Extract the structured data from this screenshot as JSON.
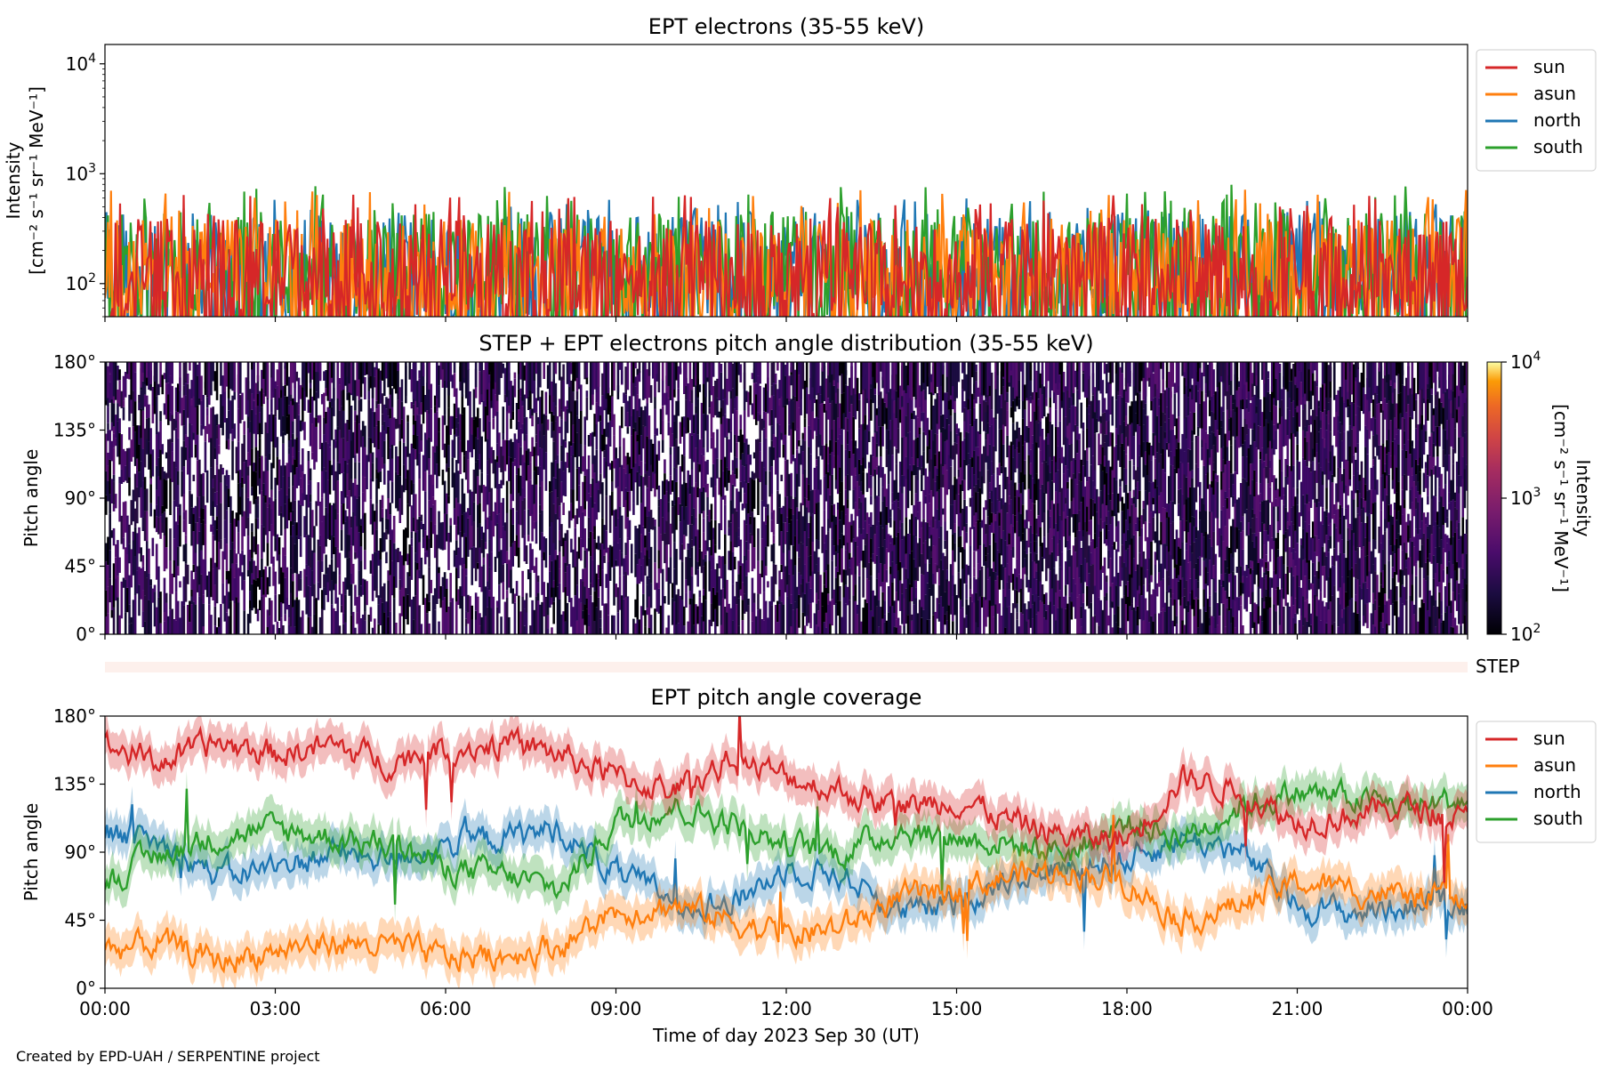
{
  "colors": {
    "sun": "#d62728",
    "asun": "#ff7f0e",
    "north": "#1f77b4",
    "south": "#2ca02c",
    "step_bar": "#fdf0ec"
  },
  "xaxis": {
    "ticks": [
      "00:00",
      "03:00",
      "06:00",
      "09:00",
      "12:00",
      "15:00",
      "18:00",
      "21:00",
      "00:00"
    ],
    "label": "Time of day 2023 Sep 30 (UT)"
  },
  "footer": "Created by EPD-UAH / SERPENTINE project",
  "chart_data": [
    {
      "type": "line",
      "title": "EPT electrons (35-55 keV)",
      "ylabel_line1": "Intensity",
      "ylabel_line2": "[cm⁻² s⁻¹ sr⁻¹ MeV⁻¹]",
      "yscale": "log",
      "ylim": [
        50,
        15000
      ],
      "yticks": [
        {
          "base": "10",
          "exp": "2",
          "value": 100
        },
        {
          "base": "10",
          "exp": "3",
          "value": 1000
        },
        {
          "base": "10",
          "exp": "4",
          "value": 10000
        }
      ],
      "xlim_hours": [
        0,
        24
      ],
      "legend": "outside-right",
      "series": [
        {
          "name": "sun",
          "typical": 130,
          "spread": 0.35,
          "max": 650
        },
        {
          "name": "asun",
          "typical": 130,
          "spread": 0.35,
          "max": 720
        },
        {
          "name": "north",
          "typical": 150,
          "spread": 0.3,
          "max": 600
        },
        {
          "name": "south",
          "typical": 150,
          "spread": 0.3,
          "max": 800
        }
      ]
    },
    {
      "type": "heatmap",
      "title": "STEP + EPT electrons pitch angle distribution (35-55 keV)",
      "ylabel": "Pitch angle",
      "ylim": [
        0,
        180
      ],
      "yticks": [
        "0°",
        "45°",
        "90°",
        "135°",
        "180°"
      ],
      "colorbar": {
        "label_line1": "Intensity",
        "label_line2": "[cm⁻² s⁻¹ sr⁻¹ MeV⁻¹]",
        "scale": "log",
        "range": [
          100,
          10000
        ],
        "ticks": [
          {
            "base": "10",
            "exp": "2"
          },
          {
            "base": "10",
            "exp": "3"
          },
          {
            "base": "10",
            "exp": "4"
          }
        ],
        "colormap": "inferno"
      }
    },
    {
      "type": "bar",
      "label": "STEP"
    },
    {
      "type": "line",
      "title": "EPT pitch angle coverage",
      "ylabel": "Pitch angle",
      "ylim": [
        0,
        180
      ],
      "yticks": [
        "0°",
        "45°",
        "90°",
        "135°",
        "180°"
      ],
      "legend": "outside-right",
      "band_half_width_deg": 12,
      "series": [
        {
          "name": "sun",
          "x_hours": [
            0,
            1,
            2,
            3,
            4,
            5,
            6,
            7,
            8,
            9,
            10,
            11,
            12,
            13,
            14,
            15,
            16,
            17,
            18,
            19,
            20,
            21,
            22,
            23,
            24
          ],
          "y": [
            160,
            150,
            162,
            155,
            160,
            150,
            158,
            162,
            155,
            140,
            130,
            150,
            140,
            130,
            120,
            125,
            110,
            100,
            98,
            140,
            130,
            110,
            115,
            120,
            110
          ]
        },
        {
          "name": "asun",
          "x_hours": [
            0,
            1,
            2,
            3,
            4,
            5,
            6,
            7,
            8,
            9,
            10,
            11,
            12,
            13,
            14,
            15,
            16,
            17,
            18,
            19,
            20,
            21,
            22,
            23,
            24
          ],
          "y": [
            25,
            30,
            18,
            25,
            30,
            28,
            20,
            22,
            28,
            50,
            55,
            45,
            35,
            40,
            60,
            65,
            75,
            78,
            70,
            45,
            55,
            70,
            65,
            60,
            60
          ]
        },
        {
          "name": "north",
          "x_hours": [
            0,
            1,
            2,
            3,
            4,
            5,
            6,
            7,
            8,
            9,
            10,
            11,
            12,
            13,
            14,
            15,
            16,
            17,
            18,
            19,
            20,
            21,
            22,
            23,
            24
          ],
          "y": [
            105,
            95,
            75,
            80,
            90,
            85,
            95,
            100,
            105,
            75,
            60,
            55,
            80,
            75,
            50,
            55,
            75,
            80,
            85,
            100,
            90,
            55,
            50,
            55,
            55
          ]
        },
        {
          "name": "south",
          "x_hours": [
            0,
            1,
            2,
            3,
            4,
            5,
            6,
            7,
            8,
            9,
            10,
            11,
            12,
            13,
            14,
            15,
            16,
            17,
            18,
            19,
            20,
            21,
            22,
            23,
            24
          ],
          "y": [
            70,
            90,
            100,
            105,
            100,
            95,
            80,
            75,
            65,
            110,
            120,
            110,
            95,
            90,
            105,
            100,
            95,
            90,
            110,
            100,
            120,
            130,
            125,
            120,
            125
          ]
        }
      ]
    }
  ]
}
